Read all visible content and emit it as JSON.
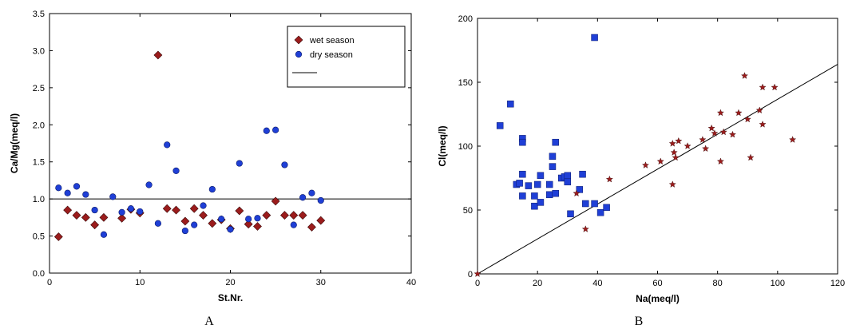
{
  "chart_data": [
    {
      "type": "scatter",
      "panel_label": "A",
      "xlabel": "St.Nr.",
      "ylabel": "Ca/Mg(meq/l)",
      "xlim": [
        0,
        40
      ],
      "ylim": [
        0,
        3.5
      ],
      "xticks": [
        "0",
        "10",
        "20",
        "30",
        "40"
      ],
      "yticks": [
        "0.0",
        "0.5",
        "1.0",
        "1.5",
        "2.0",
        "2.5",
        "3.0",
        "3.5"
      ],
      "reference_line": {
        "y": 1.0
      },
      "legend": {
        "placement": "top-right",
        "entries": [
          "wet season",
          "dry season"
        ]
      },
      "series": [
        {
          "name": "wet season",
          "marker": "diamond",
          "color": "#9b1c1c",
          "points": [
            [
              1,
              0.49
            ],
            [
              2,
              0.85
            ],
            [
              3,
              0.78
            ],
            [
              4,
              0.75
            ],
            [
              5,
              0.65
            ],
            [
              6,
              0.75
            ],
            [
              8,
              0.74
            ],
            [
              9,
              0.86
            ],
            [
              10,
              0.81
            ],
            [
              12,
              2.94
            ],
            [
              13,
              0.87
            ],
            [
              14,
              0.85
            ],
            [
              15,
              0.7
            ],
            [
              16,
              0.87
            ],
            [
              17,
              0.78
            ],
            [
              18,
              0.67
            ],
            [
              19,
              0.72
            ],
            [
              20,
              0.6
            ],
            [
              21,
              0.84
            ],
            [
              22,
              0.66
            ],
            [
              23,
              0.63
            ],
            [
              24,
              0.78
            ],
            [
              25,
              0.97
            ],
            [
              26,
              0.78
            ],
            [
              27,
              0.78
            ],
            [
              28,
              0.78
            ],
            [
              29,
              0.62
            ],
            [
              30,
              0.71
            ]
          ]
        },
        {
          "name": "dry season",
          "marker": "circle",
          "color": "#1f3fd6",
          "points": [
            [
              1,
              1.15
            ],
            [
              2,
              1.08
            ],
            [
              3,
              1.17
            ],
            [
              4,
              1.06
            ],
            [
              5,
              0.85
            ],
            [
              6,
              0.52
            ],
            [
              7,
              1.03
            ],
            [
              8,
              0.82
            ],
            [
              9,
              0.87
            ],
            [
              10,
              0.83
            ],
            [
              11,
              1.19
            ],
            [
              12,
              0.67
            ],
            [
              13,
              1.73
            ],
            [
              14,
              1.38
            ],
            [
              15,
              0.57
            ],
            [
              16,
              0.65
            ],
            [
              17,
              0.91
            ],
            [
              18,
              1.13
            ],
            [
              19,
              0.73
            ],
            [
              20,
              0.59
            ],
            [
              21,
              1.48
            ],
            [
              22,
              0.73
            ],
            [
              23,
              0.74
            ],
            [
              24,
              1.92
            ],
            [
              25,
              1.93
            ],
            [
              26,
              1.46
            ],
            [
              27,
              0.65
            ],
            [
              28,
              1.02
            ],
            [
              29,
              1.08
            ],
            [
              30,
              0.98
            ]
          ]
        }
      ]
    },
    {
      "type": "scatter",
      "panel_label": "B",
      "xlabel": "Na(meq/l)",
      "ylabel": "Cl(meq/l)",
      "xlim": [
        0,
        120
      ],
      "ylim": [
        0,
        200
      ],
      "xticks": [
        "0",
        "20",
        "40",
        "60",
        "80",
        "100",
        "120"
      ],
      "yticks": [
        "0",
        "50",
        "100",
        "150",
        "200"
      ],
      "reference_line": {
        "from": [
          0,
          0
        ],
        "to": [
          120,
          164
        ]
      },
      "series": [
        {
          "marker": "square",
          "color": "#1f3fd6",
          "points": [
            [
              7.5,
              116
            ],
            [
              11,
              133
            ],
            [
              13,
              70
            ],
            [
              14,
              71
            ],
            [
              15,
              61
            ],
            [
              15,
              78
            ],
            [
              15,
              106
            ],
            [
              15,
              103
            ],
            [
              17,
              69
            ],
            [
              19,
              53
            ],
            [
              19,
              61
            ],
            [
              20,
              70
            ],
            [
              21,
              56
            ],
            [
              21,
              77
            ],
            [
              24,
              62
            ],
            [
              24,
              70
            ],
            [
              25,
              84
            ],
            [
              25,
              92
            ],
            [
              26,
              63
            ],
            [
              26,
              103
            ],
            [
              28,
              75
            ],
            [
              29,
              76
            ],
            [
              30,
              72
            ],
            [
              30,
              77
            ],
            [
              31,
              47
            ],
            [
              34,
              66
            ],
            [
              35,
              78
            ],
            [
              36,
              55
            ],
            [
              39,
              55
            ],
            [
              39,
              185
            ],
            [
              41,
              48
            ],
            [
              43,
              52
            ]
          ]
        },
        {
          "marker": "star",
          "color": "#9b1c1c",
          "points": [
            [
              0,
              0
            ],
            [
              33,
              63
            ],
            [
              36,
              35
            ],
            [
              44,
              74
            ],
            [
              56,
              85
            ],
            [
              61,
              88
            ],
            [
              65,
              70
            ],
            [
              65,
              102
            ],
            [
              65.5,
              95
            ],
            [
              66,
              91
            ],
            [
              67,
              104
            ],
            [
              70,
              100
            ],
            [
              75,
              105
            ],
            [
              76,
              98
            ],
            [
              78,
              114
            ],
            [
              79,
              110
            ],
            [
              81,
              88
            ],
            [
              81,
              126
            ],
            [
              82,
              111
            ],
            [
              85,
              109
            ],
            [
              87,
              126
            ],
            [
              89,
              155
            ],
            [
              90,
              121
            ],
            [
              91,
              91
            ],
            [
              94,
              128
            ],
            [
              95,
              117
            ],
            [
              95,
              146
            ],
            [
              99,
              146
            ],
            [
              105,
              105
            ]
          ]
        }
      ]
    }
  ]
}
